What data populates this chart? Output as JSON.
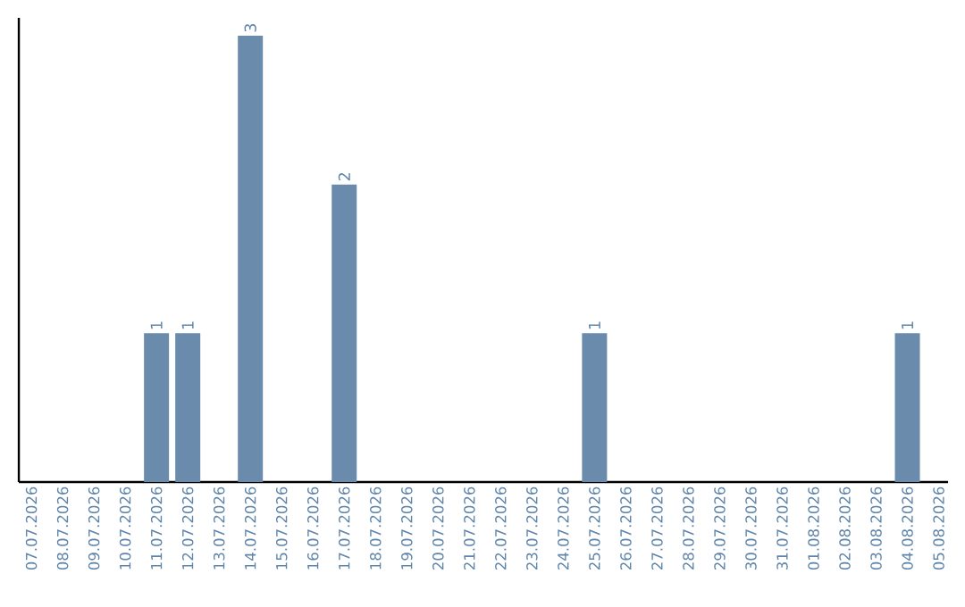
{
  "chart_data": {
    "type": "bar",
    "categories": [
      "07.07.2026",
      "08.07.2026",
      "09.07.2026",
      "10.07.2026",
      "11.07.2026",
      "12.07.2026",
      "13.07.2026",
      "14.07.2026",
      "15.07.2026",
      "16.07.2026",
      "17.07.2026",
      "18.07.2026",
      "19.07.2026",
      "20.07.2026",
      "21.07.2026",
      "22.07.2026",
      "23.07.2026",
      "24.07.2026",
      "25.07.2026",
      "26.07.2026",
      "27.07.2026",
      "28.07.2026",
      "29.07.2026",
      "30.07.2026",
      "31.07.2026",
      "01.08.2026",
      "02.08.2026",
      "03.08.2026",
      "04.08.2026",
      "05.08.2026"
    ],
    "values": [
      0,
      0,
      0,
      0,
      1,
      1,
      0,
      3,
      0,
      0,
      2,
      0,
      0,
      0,
      0,
      0,
      0,
      0,
      1,
      0,
      0,
      0,
      0,
      0,
      0,
      0,
      0,
      0,
      1,
      0
    ],
    "value_labels": [
      null,
      null,
      null,
      null,
      "1",
      "1",
      null,
      "3",
      null,
      null,
      "2",
      null,
      null,
      null,
      null,
      null,
      null,
      null,
      "1",
      null,
      null,
      null,
      null,
      null,
      null,
      null,
      null,
      null,
      "1",
      null
    ],
    "color": "#6a8bab",
    "ylim": [
      0,
      3.12
    ],
    "tick_labels": "x",
    "grid": false
  }
}
